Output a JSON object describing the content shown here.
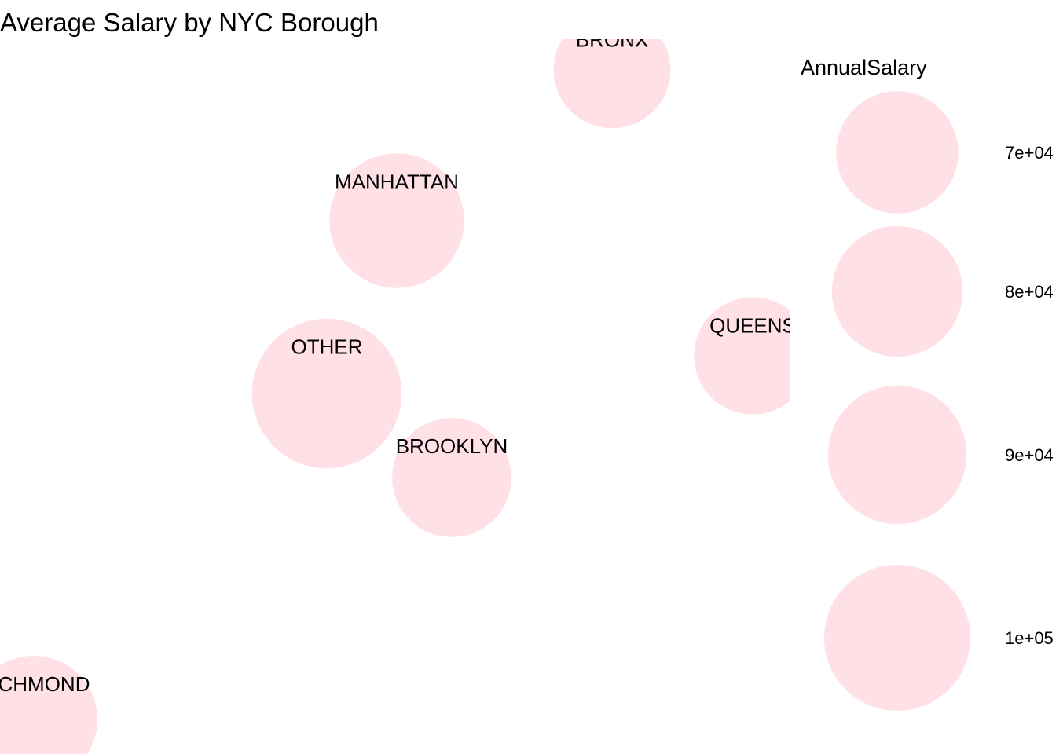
{
  "chart_data": {
    "type": "bubble",
    "title": "Average Salary by NYC Borough",
    "size_variable": "AnnualSalary",
    "bubble_color": "#ffe0e6",
    "points": [
      {
        "label": "BRONX",
        "value": 64000
      },
      {
        "label": "MANHATTAN",
        "value": 85000
      },
      {
        "label": "OTHER",
        "value": 105000
      },
      {
        "label": "BROOKLYN",
        "value": 66500
      },
      {
        "label": "QUEENS",
        "value": 64500
      },
      {
        "label": "RICHMOND",
        "value": 76000
      }
    ],
    "legend": {
      "title": "AnnualSalary",
      "placement": "right",
      "breaks": [
        {
          "label": "7e+04",
          "value": 70000
        },
        {
          "label": "8e+04",
          "value": 80000
        },
        {
          "label": "9e+04",
          "value": 90000
        },
        {
          "label": "1e+05",
          "value": 100000
        }
      ]
    }
  }
}
